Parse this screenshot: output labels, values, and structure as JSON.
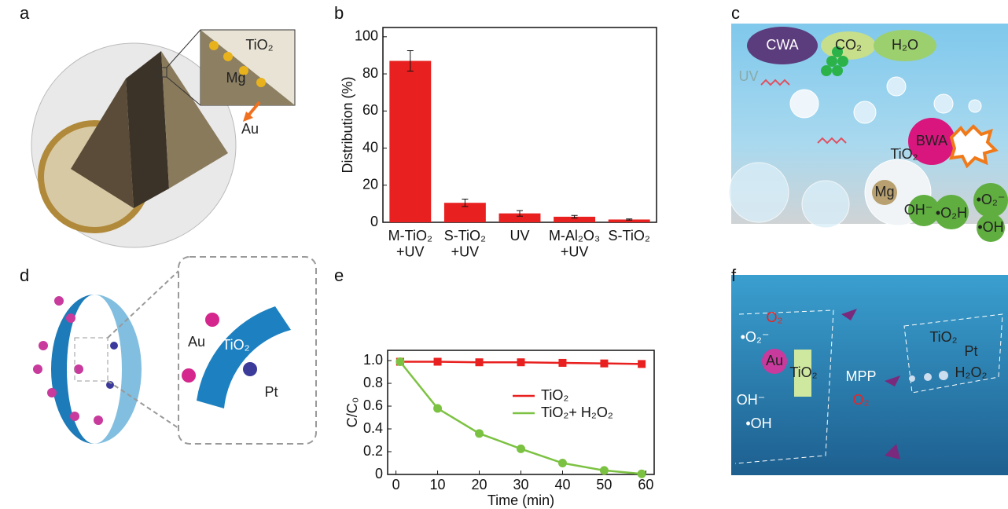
{
  "chart_data": [
    {
      "type": "bar",
      "panel": "b",
      "ylabel": "Distribution (%)",
      "categories": [
        "M-TiO₂\n+UV",
        "S-TiO₂\n+UV",
        "UV",
        "M-Al₂O₃\n+UV",
        "S-TiO₂"
      ],
      "values": [
        87,
        10.5,
        4.8,
        3.0,
        1.5
      ],
      "errors": [
        5.5,
        2,
        1.5,
        0.7,
        0.3
      ],
      "color": "#e8201f",
      "ylim": [
        0,
        105
      ],
      "yticks": [
        0,
        20,
        40,
        60,
        80,
        100
      ]
    },
    {
      "type": "line",
      "panel": "e",
      "xlabel": "Time (min)",
      "ylabel": "C/C₀",
      "x": [
        1,
        10,
        20,
        30,
        40,
        50,
        59
      ],
      "series": [
        {
          "name": "TiO₂",
          "color": "#e8201f",
          "marker": "square",
          "values": [
            0.99,
            0.99,
            0.985,
            0.985,
            0.98,
            0.975,
            0.97
          ]
        },
        {
          "name": "TiO₂+ H₂O₂",
          "color": "#7cc242",
          "marker": "circle",
          "values": [
            0.99,
            0.58,
            0.36,
            0.225,
            0.1,
            0.035,
            0.005
          ]
        }
      ],
      "xlim": [
        -2,
        62
      ],
      "xticks": [
        0,
        10,
        20,
        30,
        40,
        50,
        60
      ],
      "ylim": [
        0,
        1.09
      ],
      "yticks": [
        0,
        {
          "value": 0.2,
          "label": "0.2"
        },
        {
          "value": 0.4,
          "label": "0.4"
        },
        {
          "value": 0.6,
          "label": "0.6"
        },
        {
          "value": 0.8,
          "label": "0.8"
        },
        {
          "value": 1,
          "label": "1.0"
        }
      ]
    }
  ],
  "panels": [
    {
      "label": "a",
      "texts": [
        "TiO₂",
        "Mg",
        "Au"
      ]
    },
    {
      "label": "c",
      "texts": [
        "CWA",
        "CO₂",
        "H₂O",
        "UV",
        "BWA",
        "TiO₂",
        "Mg",
        "OH⁻",
        "•O₂H",
        "•O₂⁻",
        "•OH"
      ]
    },
    {
      "label": "d",
      "texts": [
        "Au",
        "TiO₂",
        "Pt"
      ]
    },
    {
      "label": "f",
      "texts": [
        "O₂",
        "•O₂⁻",
        "Au",
        "TiO₂",
        "OH⁻",
        "•OH",
        "MPP",
        "TiO₂",
        "Pt",
        "H₂O₂",
        "O₂"
      ]
    }
  ]
}
